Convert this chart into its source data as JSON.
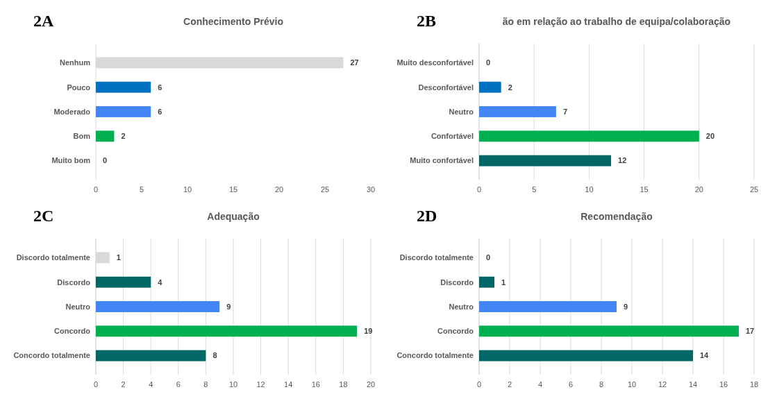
{
  "chart_data": [
    {
      "type": "bar",
      "orientation": "horizontal",
      "title": "Conhecimento Prévio",
      "annotations": [
        "2A"
      ],
      "categories": [
        "Nenhum",
        "Pouco",
        "Moderado",
        "Bom",
        "Muito bom"
      ],
      "values": [
        27,
        6,
        6,
        2,
        0
      ],
      "colors": [
        "#d9d9d9",
        "#0070c0",
        "#4285f4",
        "#00b050",
        "#006666"
      ],
      "xlim": [
        0,
        30
      ],
      "xticks": [
        0,
        5,
        10,
        15,
        20,
        25,
        30
      ],
      "grid": false,
      "data_labels": true
    },
    {
      "type": "bar",
      "orientation": "horizontal",
      "title": "ão em relação ao trabalho de equipa/colaboração",
      "annotations": [
        "2B"
      ],
      "categories": [
        "Muito desconfortável",
        "Desconfortável",
        "Neutro",
        "Confortável",
        "Muito confortável"
      ],
      "values": [
        0,
        2,
        7,
        20,
        12
      ],
      "colors": [
        "#d9d9d9",
        "#0070c0",
        "#4285f4",
        "#00b050",
        "#006666"
      ],
      "xlim": [
        0,
        25
      ],
      "xticks": [
        0,
        5,
        10,
        15,
        20,
        25
      ],
      "grid": "x",
      "data_labels": true
    },
    {
      "type": "bar",
      "orientation": "horizontal",
      "title": "Adequação",
      "annotations": [
        "2C"
      ],
      "categories": [
        "Discordo totalmente",
        "Discordo",
        "Neutro",
        "Concordo",
        "Concordo totalmente"
      ],
      "values": [
        1,
        4,
        9,
        19,
        8
      ],
      "colors": [
        "#d9d9d9",
        "#006666",
        "#4285f4",
        "#00b050",
        "#006666"
      ],
      "xlim": [
        0,
        20
      ],
      "xticks": [
        0,
        2,
        4,
        6,
        8,
        10,
        12,
        14,
        16,
        18,
        20
      ],
      "grid": "x",
      "data_labels": true
    },
    {
      "type": "bar",
      "orientation": "horizontal",
      "title": "Recomendação",
      "annotations": [
        "2D"
      ],
      "categories": [
        "Discordo totalmente",
        "Discordo",
        "Neutro",
        "Concordo",
        "Concordo totalmente"
      ],
      "values": [
        0,
        1,
        9,
        17,
        14
      ],
      "colors": [
        "#d9d9d9",
        "#006666",
        "#4285f4",
        "#00b050",
        "#006666"
      ],
      "xlim": [
        0,
        18
      ],
      "xticks": [
        0,
        2,
        4,
        6,
        8,
        10,
        12,
        14,
        16,
        18
      ],
      "grid": "x",
      "data_labels": true
    }
  ]
}
